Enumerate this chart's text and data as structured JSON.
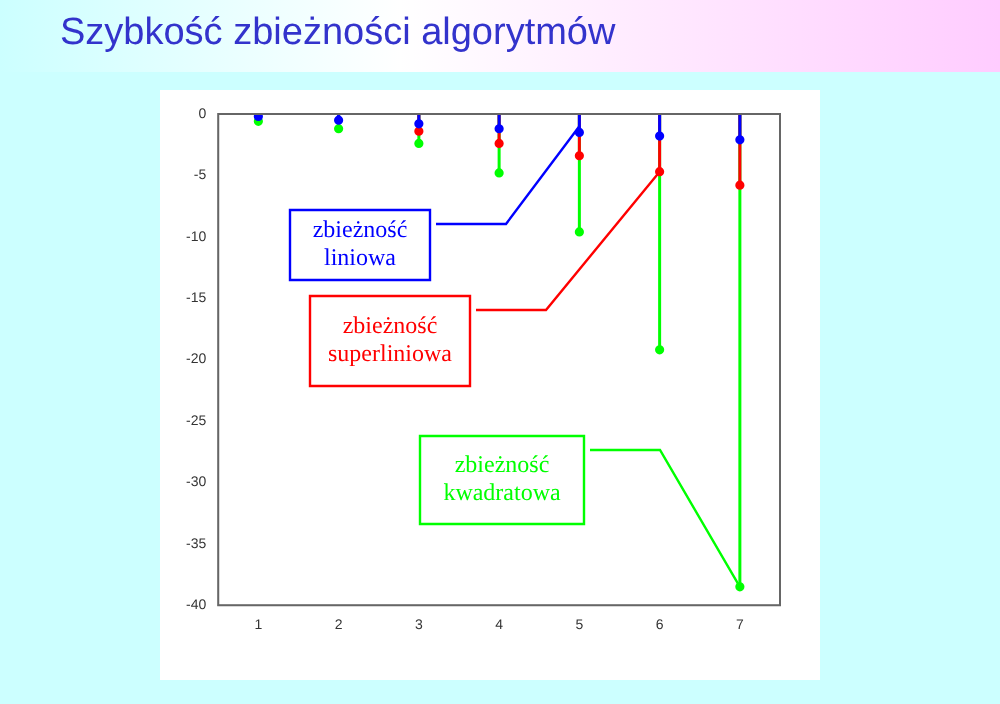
{
  "chart_data": {
    "type": "lollipop",
    "title": "Szybkość zbieżności algorytmów",
    "x": [
      1,
      2,
      3,
      4,
      5,
      6,
      7
    ],
    "series": [
      {
        "color": "#0000ff",
        "values": [
          -0.2,
          -0.5,
          -0.8,
          -1.2,
          -1.5,
          -1.8,
          -2.1
        ]
      },
      {
        "color": "#ff0000",
        "values": [
          null,
          null,
          -1.4,
          -2.4,
          -3.4,
          -4.7,
          -5.8
        ]
      },
      {
        "color": "#00ff00",
        "values": [
          -0.6,
          -1.2,
          -2.4,
          -4.8,
          -9.6,
          -19.2,
          -38.5
        ]
      }
    ],
    "xlim": [
      0.5,
      7.5
    ],
    "xticks": [
      1,
      2,
      3,
      4,
      5,
      6,
      7
    ],
    "ylim": [
      -40,
      0
    ],
    "yticks": [
      -40,
      -35,
      -30,
      -25,
      -20,
      -15,
      -10,
      -5,
      0
    ],
    "marker": "circle",
    "grid": false,
    "legend": false,
    "annotations": [
      {
        "text": "zbieżność liniowa",
        "x": 5,
        "y": -1.0
      },
      {
        "text": "zbieżność superliniowa",
        "x": 6,
        "y": -4.7
      },
      {
        "text": "zbieżność kwadratowa",
        "x": 7,
        "y": -38.5
      }
    ]
  }
}
